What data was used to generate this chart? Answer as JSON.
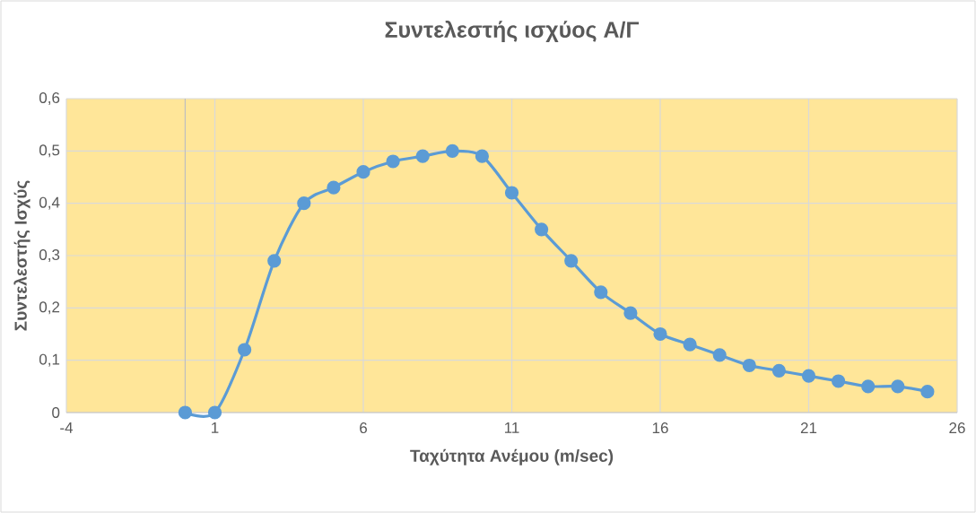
{
  "chart_data": {
    "type": "line",
    "title": "Συντελεστής ισχύος Α/Γ",
    "xlabel": "Ταχύτητα Ανέμου (m/sec)",
    "ylabel": "Συντελεστής Ισχύς",
    "x": [
      0,
      1,
      2,
      3,
      4,
      5,
      6,
      7,
      8,
      9,
      10,
      11,
      12,
      13,
      14,
      15,
      16,
      17,
      18,
      19,
      20,
      21,
      22,
      23,
      24,
      25
    ],
    "series": [
      {
        "color": "#5b9bd5",
        "values": [
          0,
          0,
          0.12,
          0.29,
          0.4,
          0.43,
          0.46,
          0.48,
          0.49,
          0.5,
          0.49,
          0.42,
          0.35,
          0.29,
          0.23,
          0.19,
          0.15,
          0.13,
          0.11,
          0.09,
          0.08,
          0.07,
          0.06,
          0.05,
          0.05,
          0.04
        ]
      }
    ],
    "xlim": [
      -4,
      26
    ],
    "xticks": [
      -4,
      1,
      6,
      11,
      16,
      21,
      26
    ],
    "ylim": [
      0,
      0.6
    ],
    "yticks": [
      0,
      {
        "value": 0.1,
        "label": "0,1"
      },
      {
        "value": 0.2,
        "label": "0,2"
      },
      {
        "value": 0.3,
        "label": "0,3"
      },
      {
        "value": 0.4,
        "label": "0,4"
      },
      {
        "value": 0.5,
        "label": "0,5"
      },
      {
        "value": 0.6,
        "label": "0,6"
      }
    ],
    "ref_lines": [
      {
        "axis": "x",
        "value": 0,
        "color": "#bfbfbf"
      }
    ],
    "grid": true,
    "marker": "circle",
    "line_style": "solid"
  }
}
